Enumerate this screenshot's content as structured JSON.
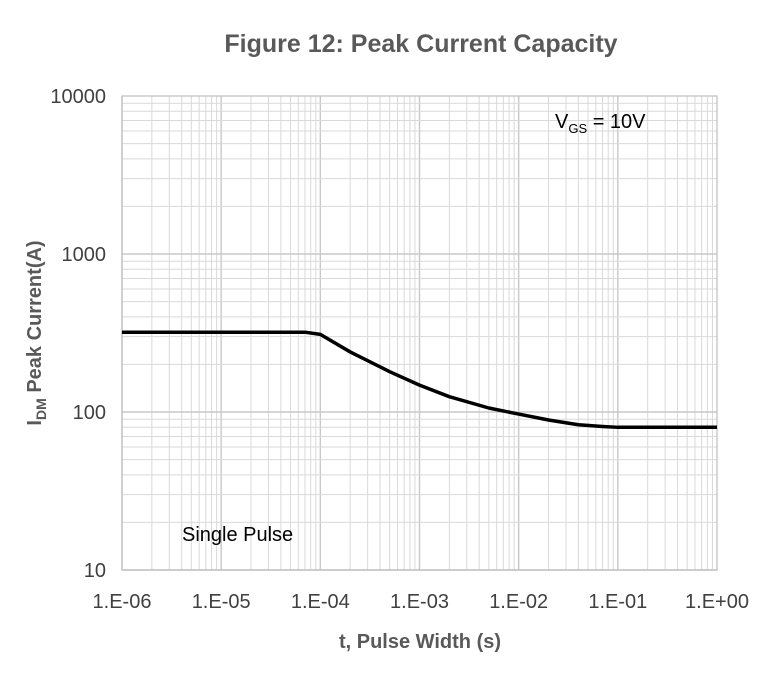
{
  "chart_data": {
    "type": "line",
    "title": "Figure 12: Peak Current Capacity",
    "xlabel": "t, Pulse Width (s)",
    "ylabel_main": "I",
    "ylabel_sub": "DM",
    "ylabel_rest": " Peak Current(A)",
    "xscale": "log",
    "yscale": "log",
    "xlim": [
      1e-06,
      1
    ],
    "ylim": [
      10,
      10000
    ],
    "x_tick_values": [
      1e-06,
      1e-05,
      0.0001,
      0.001,
      0.01,
      0.1,
      1
    ],
    "x_tick_labels": [
      "1.E-06",
      "1.E-05",
      "1.E-04",
      "1.E-03",
      "1.E-02",
      "1.E-01",
      "1.E+00"
    ],
    "y_tick_values": [
      10,
      100,
      1000,
      10000
    ],
    "y_tick_labels": [
      "10",
      "100",
      "1000",
      "10000"
    ],
    "grid": true,
    "series": [
      {
        "name": "Single Pulse",
        "color": "#000000",
        "x": [
          1e-06,
          3e-05,
          7e-05,
          0.0001,
          0.0002,
          0.0005,
          0.001,
          0.002,
          0.005,
          0.01,
          0.02,
          0.04,
          0.07,
          0.1,
          0.3,
          1
        ],
        "y": [
          320,
          320,
          320,
          310,
          240,
          180,
          148,
          125,
          106,
          97,
          89,
          83,
          81,
          80,
          80,
          80
        ]
      }
    ],
    "annotations": {
      "vgs_main": "V",
      "vgs_sub": "GS",
      "vgs_rest": " = 10V",
      "pulse": "Single Pulse"
    },
    "colors": {
      "grid": "#d9d9d9",
      "axis": "#bfbfbf",
      "line": "#000000"
    }
  }
}
